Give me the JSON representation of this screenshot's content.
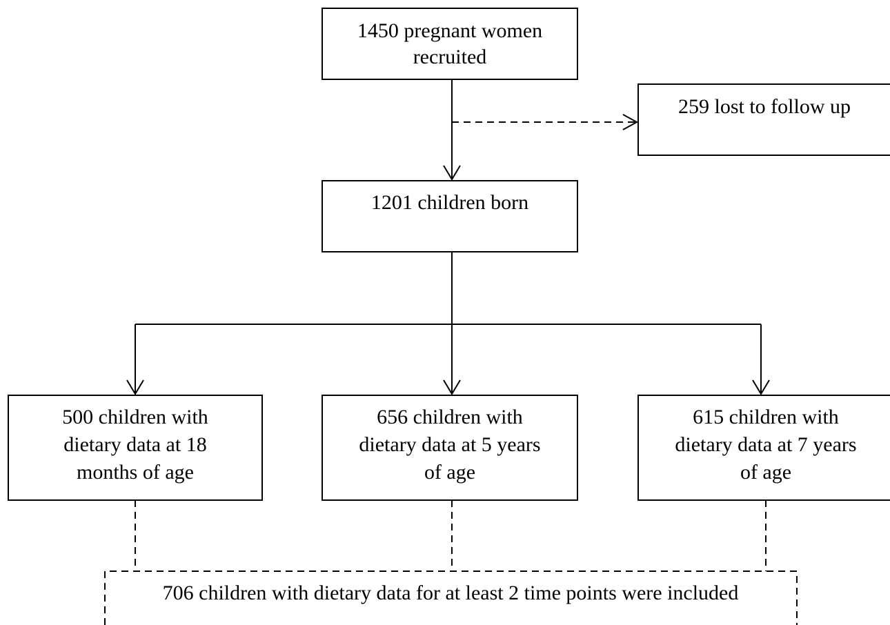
{
  "nodes": [
    {
      "lines": [
        "1450 pregnant women",
        "recruited"
      ]
    },
    {
      "lines": [
        "259 lost to follow up"
      ]
    },
    {
      "lines": [
        "1201 children born"
      ]
    },
    {
      "lines": [
        "500 children with",
        "dietary data at 18",
        "months of age"
      ]
    },
    {
      "lines": [
        "656 children with",
        "dietary data at 5 years",
        "of age"
      ]
    },
    {
      "lines": [
        "615 children with",
        "dietary data at 7 years",
        "of age"
      ]
    },
    {
      "lines": [
        "706 children with dietary data for at least 2 time points were included"
      ]
    }
  ]
}
